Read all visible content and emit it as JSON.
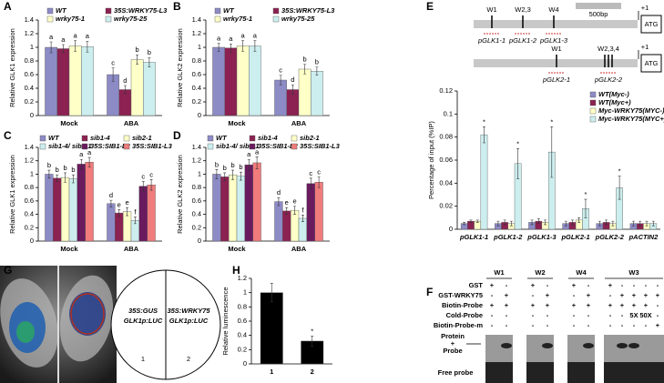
{
  "panel_labels": [
    "A",
    "B",
    "C",
    "D",
    "E",
    "F",
    "G",
    "H"
  ],
  "chart_data": [
    {
      "type": "bar",
      "ylabel": "Relative GLK1 expression",
      "categories": [
        "Mock",
        "ABA"
      ],
      "ylim": [
        0,
        1.4
      ],
      "yticks": [
        0,
        0.2,
        0.4,
        0.6,
        0.8,
        1,
        1.2,
        1.4
      ],
      "series": [
        {
          "name": "WT",
          "color": "#8d8bc6",
          "values": [
            1.0,
            0.6
          ],
          "errors": [
            0.08,
            0.1
          ],
          "labels": [
            "a",
            "c"
          ]
        },
        {
          "name": "35S:WRKY75-L3",
          "color": "#8b2252",
          "values": [
            0.98,
            0.38
          ],
          "errors": [
            0.06,
            0.06
          ],
          "labels": [
            "a",
            "d"
          ]
        },
        {
          "name": "wrky75-1",
          "color": "#ffffc8",
          "values": [
            1.02,
            0.82
          ],
          "errors": [
            0.08,
            0.07
          ],
          "labels": [
            "a",
            "b"
          ]
        },
        {
          "name": "wrky75-25",
          "color": "#cdeeee",
          "values": [
            1.01,
            0.78
          ],
          "errors": [
            0.08,
            0.07
          ],
          "labels": [
            "a",
            "b"
          ]
        }
      ]
    },
    {
      "type": "bar",
      "ylabel": "Relative GLK2 expression",
      "categories": [
        "Mock",
        "ABA"
      ],
      "ylim": [
        0,
        1.4
      ],
      "yticks": [
        0,
        0.2,
        0.4,
        0.6,
        0.8,
        1,
        1.2,
        1.4
      ],
      "series": [
        {
          "name": "WT",
          "color": "#8d8bc6",
          "values": [
            1.0,
            0.52
          ],
          "errors": [
            0.06,
            0.07
          ],
          "labels": [
            "a",
            "c"
          ]
        },
        {
          "name": "35S:WRKY75-L3",
          "color": "#8b2252",
          "values": [
            0.99,
            0.38
          ],
          "errors": [
            0.06,
            0.07
          ],
          "labels": [
            "a",
            "d"
          ]
        },
        {
          "name": "wrky75-1",
          "color": "#ffffc8",
          "values": [
            1.02,
            0.68
          ],
          "errors": [
            0.08,
            0.07
          ],
          "labels": [
            "a",
            "b"
          ]
        },
        {
          "name": "wrky75-25",
          "color": "#cdeeee",
          "values": [
            1.02,
            0.65
          ],
          "errors": [
            0.08,
            0.06
          ],
          "labels": [
            "a",
            "b"
          ]
        }
      ]
    },
    {
      "type": "bar",
      "ylabel": "Relative GLK1 expression",
      "categories": [
        "Mock",
        "ABA"
      ],
      "ylim": [
        0,
        1.4
      ],
      "yticks": [
        0,
        0.2,
        0.4,
        0.6,
        0.8,
        1,
        1.2,
        1.4
      ],
      "series": [
        {
          "name": "WT",
          "color": "#8d8bc6",
          "values": [
            1.0,
            0.56
          ],
          "errors": [
            0.06,
            0.05
          ],
          "labels": [
            "b",
            "d"
          ]
        },
        {
          "name": "sib1-4",
          "color": "#8b2252",
          "values": [
            0.94,
            0.42
          ],
          "errors": [
            0.05,
            0.05
          ],
          "labels": [
            "b",
            "e"
          ]
        },
        {
          "name": "sib2-1",
          "color": "#ffffc8",
          "values": [
            0.95,
            0.44
          ],
          "errors": [
            0.07,
            0.06
          ],
          "labels": [
            "b",
            "e"
          ]
        },
        {
          "name": "sib1-4/ sib2-1",
          "color": "#cdeeee",
          "values": [
            0.93,
            0.31
          ],
          "errors": [
            0.06,
            0.05
          ],
          "labels": [
            "b",
            "f"
          ]
        },
        {
          "name": "35S:SIB1-L2",
          "color": "#6a1b5e",
          "values": [
            1.15,
            0.82
          ],
          "errors": [
            0.07,
            0.07
          ],
          "labels": [
            "a",
            "c"
          ]
        },
        {
          "name": "35S:SIB1-L3",
          "color": "#f07c7c",
          "values": [
            1.18,
            0.84
          ],
          "errors": [
            0.07,
            0.08
          ],
          "labels": [
            "a",
            "c"
          ]
        }
      ]
    },
    {
      "type": "bar",
      "ylabel": "Relative GLK2 expression",
      "categories": [
        "Mock",
        "ABA"
      ],
      "ylim": [
        0,
        1.4
      ],
      "yticks": [
        0,
        0.2,
        0.4,
        0.6,
        0.8,
        1,
        1.2,
        1.4
      ],
      "series": [
        {
          "name": "WT",
          "color": "#8d8bc6",
          "values": [
            1.0,
            0.59
          ],
          "errors": [
            0.07,
            0.06
          ],
          "labels": [
            "b",
            "d"
          ]
        },
        {
          "name": "sib1-4",
          "color": "#8b2252",
          "values": [
            0.96,
            0.45
          ],
          "errors": [
            0.06,
            0.05
          ],
          "labels": [
            "b",
            "e"
          ]
        },
        {
          "name": "sib2-1",
          "color": "#ffffc8",
          "values": [
            0.99,
            0.46
          ],
          "errors": [
            0.07,
            0.06
          ],
          "labels": [
            "b",
            "e"
          ]
        },
        {
          "name": "sib1-4/ sib2-1",
          "color": "#cdeeee",
          "values": [
            0.97,
            0.34
          ],
          "errors": [
            0.06,
            0.05
          ],
          "labels": [
            "b",
            "f"
          ]
        },
        {
          "name": "35S:SIB1-L2",
          "color": "#6a1b5e",
          "values": [
            1.14,
            0.86
          ],
          "errors": [
            0.08,
            0.08
          ],
          "labels": [
            "a",
            "c"
          ]
        },
        {
          "name": "35S:SIB1-L3",
          "color": "#f07c7c",
          "values": [
            1.17,
            0.88
          ],
          "errors": [
            0.09,
            0.08
          ],
          "labels": [
            "a",
            "c"
          ]
        }
      ]
    },
    {
      "type": "bar",
      "ylabel": "Percentage of input (%IP)",
      "categories": [
        "pGLK1-1",
        "pGLK1-2",
        "pGLK1-3",
        "pGLK2-1",
        "pGLK2-2",
        "pACTIN2"
      ],
      "ylim": [
        0,
        0.12
      ],
      "yticks": [
        0,
        0.02,
        0.04,
        0.06,
        0.08,
        0.1,
        0.12
      ],
      "series": [
        {
          "name": "WT(Myc-)",
          "color": "#8d8bc6",
          "values": [
            0.005,
            0.005,
            0.006,
            0.005,
            0.005,
            0.005
          ],
          "errors": [
            0.001,
            0.002,
            0.002,
            0.002,
            0.002,
            0.002
          ],
          "labels": [
            null,
            null,
            null,
            null,
            null,
            null
          ]
        },
        {
          "name": "WT(Myc+)",
          "color": "#8b2252",
          "values": [
            0.007,
            0.006,
            0.007,
            0.006,
            0.006,
            0.005
          ],
          "errors": [
            0.001,
            0.002,
            0.002,
            0.002,
            0.002,
            0.002
          ],
          "labels": [
            null,
            null,
            null,
            null,
            null,
            null
          ]
        },
        {
          "name": "Myc-WRKY75(MYC-)",
          "color": "#ffffc8",
          "values": [
            0.007,
            0.005,
            0.006,
            0.008,
            0.005,
            0.005
          ],
          "errors": [
            0.001,
            0.002,
            0.002,
            0.002,
            0.002,
            0.002
          ],
          "labels": [
            null,
            null,
            null,
            null,
            null,
            null
          ]
        },
        {
          "name": "Myc-WRKY75(MYC+)",
          "color": "#cdeeee",
          "values": [
            0.082,
            0.057,
            0.067,
            0.018,
            0.036,
            0.005
          ],
          "errors": [
            0.007,
            0.013,
            0.022,
            0.008,
            0.01,
            0.002
          ],
          "labels": [
            "*",
            "*",
            "*",
            "*",
            "*",
            null
          ]
        }
      ]
    },
    {
      "type": "bar",
      "ylabel": "Relative luminescence",
      "categories": [
        "1",
        "2"
      ],
      "ylim": [
        0,
        1.2
      ],
      "yticks": [
        0,
        0.2,
        0.4,
        0.6,
        0.8,
        1,
        1.2
      ],
      "color": "#000000",
      "values": [
        1.0,
        0.32
      ],
      "errors": [
        0.13,
        0.07
      ],
      "labels": [
        null,
        "*"
      ]
    }
  ],
  "promoters": {
    "scale": "500bp",
    "tss": "+1",
    "start_codon": "ATG",
    "glk1": {
      "sites": [
        "W1",
        "W2,3",
        "W4"
      ],
      "fragments": [
        "pGLK1-1",
        "pGLK1-2",
        "pGLK1-3"
      ]
    },
    "glk2": {
      "sites": [
        "W1",
        "W2,3,4"
      ],
      "fragments": [
        "pGLK2-1",
        "pGLK2-2"
      ]
    }
  },
  "emsa": {
    "groups": [
      "W1",
      "W2",
      "W4",
      "W3"
    ],
    "rows": [
      {
        "label": "GST",
        "cells": [
          "+",
          "-",
          "+",
          "-",
          "+",
          "-",
          "+",
          "-",
          "-",
          "-",
          "-"
        ]
      },
      {
        "label": "GST-WRKY75",
        "cells": [
          "-",
          "+",
          "-",
          "+",
          "-",
          "+",
          "-",
          "+",
          "+",
          "+",
          "+"
        ]
      },
      {
        "label": "Biotin-Probe",
        "cells": [
          "+",
          "+",
          "+",
          "+",
          "+",
          "+",
          "+",
          "+",
          "+",
          "+",
          "-"
        ]
      },
      {
        "label": "Cold-Probe",
        "cells": [
          "-",
          "-",
          "-",
          "-",
          "-",
          "-",
          "-",
          "-",
          "5X",
          "50X",
          "-"
        ]
      },
      {
        "label": "Biotin-Probe-m",
        "cells": [
          "-",
          "-",
          "-",
          "-",
          "-",
          "-",
          "-",
          "-",
          "-",
          "-",
          "+"
        ]
      }
    ],
    "bands": {
      "complex": [
        "Protein",
        "+",
        "Probe"
      ],
      "free": "Free probe"
    }
  },
  "luc": {
    "left": [
      "35S:GUS",
      "GLK1p:LUC"
    ],
    "right": [
      "35S:WRKY75",
      "GLK1p:LUC"
    ],
    "numbers": [
      "1",
      "2"
    ]
  }
}
